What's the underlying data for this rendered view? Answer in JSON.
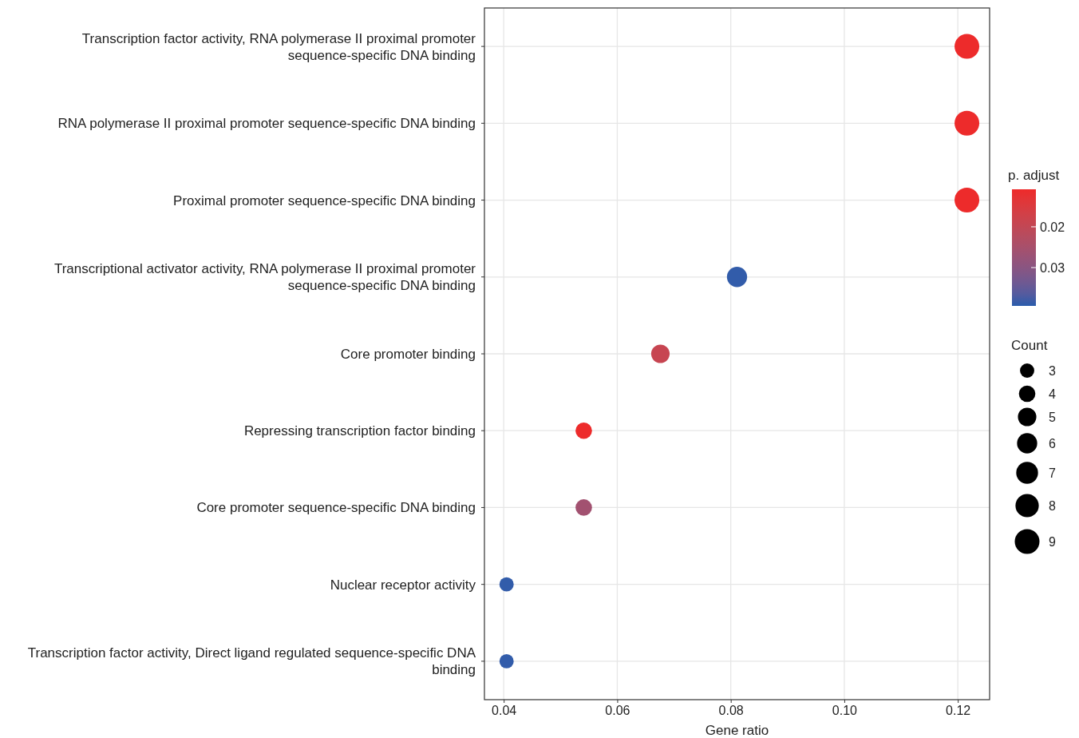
{
  "chart_data": {
    "type": "bubble",
    "xlabel": "Gene ratio",
    "legend_title": "Count",
    "clabel": "p. adjust",
    "categories": [
      "Transcription factor activity, RNA polymerase II proximal promoter sequence-specific DNA binding",
      "RNA polymerase II proximal promoter sequence-specific DNA binding",
      "Proximal promoter sequence-specific DNA binding",
      "Transcriptional activator activity, RNA polymerase II proximal promoter sequence-specific DNA binding",
      "Core promoter binding",
      "Repressing transcription factor binding",
      "Core promoter sequence-specific DNA binding",
      "Nuclear receptor activity",
      "Transcription factor activity, Direct ligand regulated sequence-specific DNA binding"
    ],
    "orientation": "horizontal",
    "values": [
      0.1216,
      0.1216,
      0.1216,
      0.0811,
      0.0676,
      0.0541,
      0.0541,
      0.0405,
      0.0405
    ],
    "sizes": [
      9,
      9,
      9,
      6,
      5,
      4,
      4,
      3,
      3
    ],
    "cvalues": [
      0.011,
      0.011,
      0.011,
      0.039,
      0.019,
      0.011,
      0.026,
      0.039,
      0.039
    ],
    "size_legend": [
      3,
      4,
      5,
      6,
      7,
      8,
      9
    ],
    "clim": [
      0.0108,
      0.0394
    ],
    "cticks": [
      0.02,
      0.03
    ],
    "xlim": [
      0.0366,
      0.1256
    ],
    "xticks": [
      0.04,
      0.06,
      0.08,
      {
        "value": 0.1,
        "label": "0.10"
      },
      0.12
    ],
    "grid": true
  }
}
